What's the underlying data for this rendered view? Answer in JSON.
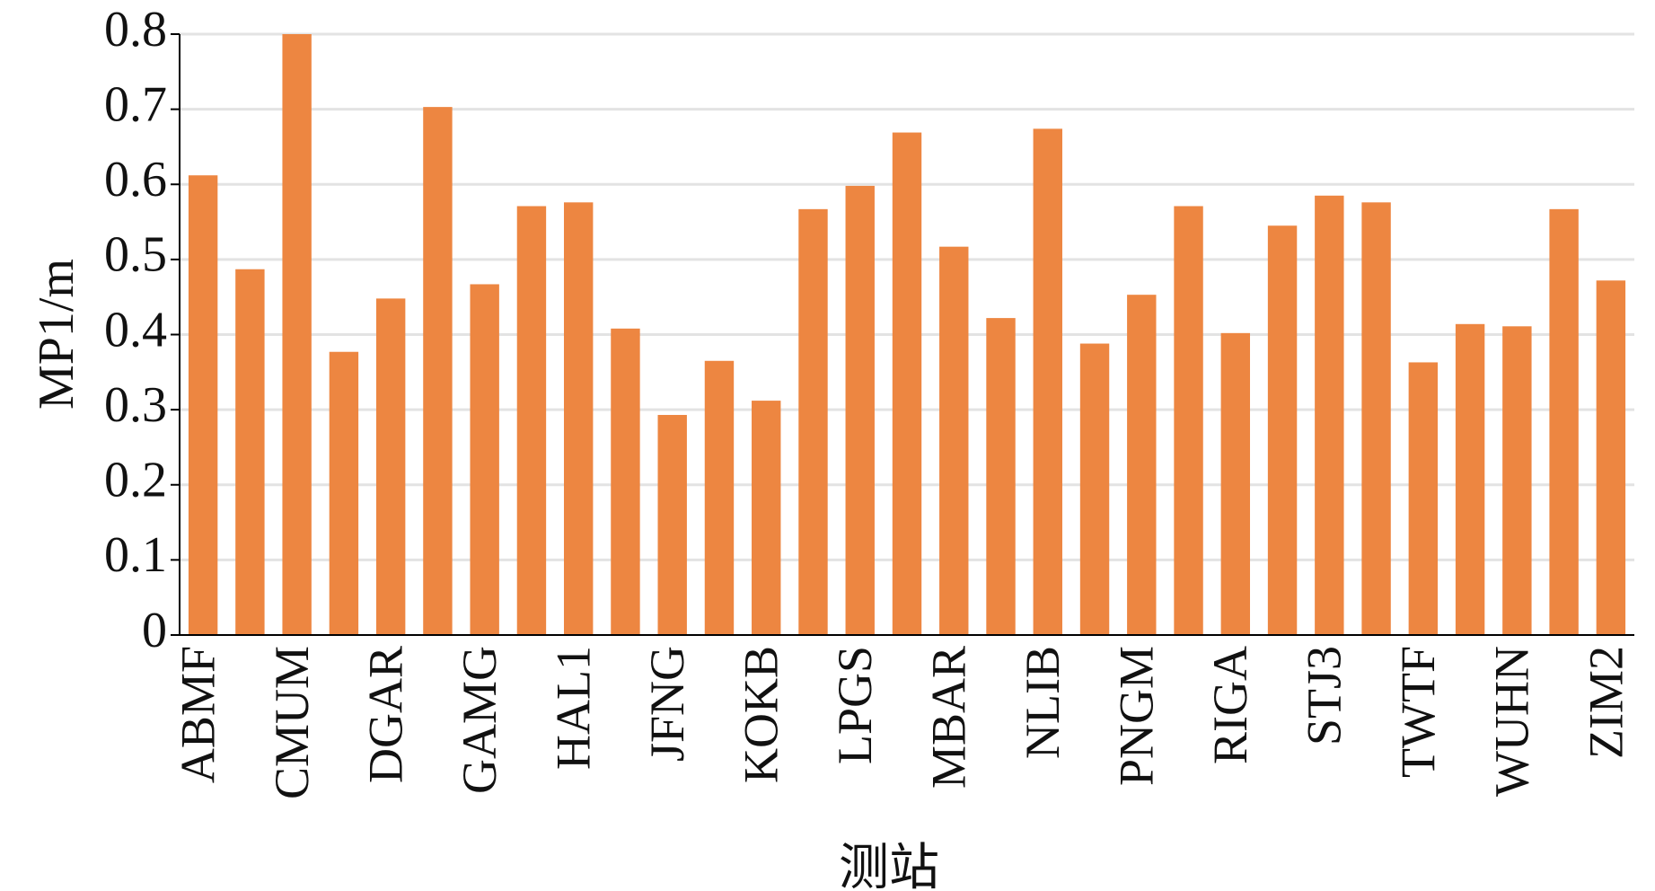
{
  "chart_data": {
    "type": "bar",
    "x_label": "测站",
    "y_label": "MP1/m",
    "categories": [
      "ABMF",
      null,
      "CMUM",
      null,
      "DGAR",
      null,
      "GAMG",
      null,
      "HAL1",
      null,
      "JFNG",
      null,
      "KOKB",
      null,
      "LPGS",
      null,
      "MBAR",
      null,
      "NLIB",
      null,
      "PNGM",
      null,
      "RIGA",
      null,
      "STJ3",
      null,
      "TWTF",
      null,
      "WUHN",
      null,
      "ZIM2"
    ],
    "values": [
      0.612,
      0.487,
      0.8,
      0.377,
      0.448,
      0.703,
      0.467,
      0.571,
      0.576,
      0.408,
      0.293,
      0.365,
      0.312,
      0.567,
      0.598,
      0.669,
      0.517,
      0.422,
      0.674,
      0.388,
      0.453,
      0.571,
      0.402,
      0.545,
      0.585,
      0.576,
      0.363,
      0.414,
      0.411,
      0.567,
      0.472
    ],
    "color": "#ed8641",
    "ylim": [
      0,
      0.8
    ],
    "yticks": [
      0,
      0.1,
      0.2,
      0.3,
      0.4,
      0.5,
      0.6,
      0.7,
      0.8
    ],
    "grid": true
  }
}
